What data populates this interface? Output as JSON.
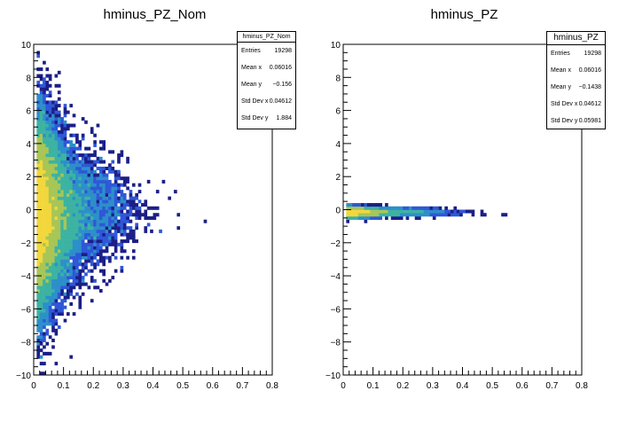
{
  "canvas": {
    "background": "#ffffff"
  },
  "pads": [
    {
      "id": "left",
      "title": "hminus_PZ_Nom",
      "stats": {
        "name": "hminus_PZ_Nom",
        "rows": [
          {
            "label": "Entries",
            "value": "19298"
          },
          {
            "label": "Mean x",
            "value": "0.06016"
          },
          {
            "label": "Mean y",
            "value": "−0.156"
          },
          {
            "label": "Std Dev x",
            "value": "0.04612"
          },
          {
            "label": "Std Dev y",
            "value": "1.884"
          }
        ]
      }
    },
    {
      "id": "right",
      "title": "hminus_PZ",
      "stats": {
        "name": "hminus_PZ",
        "rows": [
          {
            "label": "Entries",
            "value": "19298"
          },
          {
            "label": "Mean x",
            "value": "0.06016"
          },
          {
            "label": "Mean y",
            "value": "−0.1438"
          },
          {
            "label": "Std Dev x",
            "value": "0.04612"
          },
          {
            "label": "Std Dev y",
            "value": "0.05981"
          }
        ]
      }
    }
  ],
  "chart_data": [
    {
      "type": "heatmap",
      "title": "hminus_PZ_Nom",
      "xlabel": "",
      "ylabel": "",
      "xlim": [
        0,
        0.8
      ],
      "ylim": [
        -10,
        10
      ],
      "x_ticks": [
        "0",
        "0.1",
        "0.2",
        "0.3",
        "0.4",
        "0.5",
        "0.6",
        "0.7",
        "0.8"
      ],
      "y_ticks": [
        "−10",
        "−8",
        "−6",
        "−4",
        "−2",
        "0",
        "2",
        "4",
        "6",
        "8",
        "10"
      ],
      "colormap": [
        "#1b1f86",
        "#2f57d8",
        "#2c8fc9",
        "#3cb3a2",
        "#a7c656",
        "#f2d73c"
      ],
      "stats": {
        "Entries": 19298,
        "Mean x": 0.06016,
        "Mean y": -0.156,
        "Std Dev x": 0.04612,
        "Std Dev y": 1.884
      },
      "grid": false,
      "legend": "top-right"
    },
    {
      "type": "heatmap",
      "title": "hminus_PZ",
      "xlabel": "",
      "ylabel": "",
      "xlim": [
        0,
        0.8
      ],
      "ylim": [
        -10,
        10
      ],
      "x_ticks": [
        "0",
        "0.1",
        "0.2",
        "0.3",
        "0.4",
        "0.5",
        "0.6",
        "0.7",
        "0.8"
      ],
      "y_ticks": [
        "−10",
        "−8",
        "−6",
        "−4",
        "−2",
        "0",
        "2",
        "4",
        "6",
        "8",
        "10"
      ],
      "colormap": [
        "#1b1f86",
        "#2f57d8",
        "#2c8fc9",
        "#3cb3a2",
        "#a7c656",
        "#f2d73c"
      ],
      "stats": {
        "Entries": 19298,
        "Mean x": 0.06016,
        "Mean y": -0.1438,
        "Std Dev x": 0.04612,
        "Std Dev y": 0.05981
      },
      "grid": false,
      "legend": "top-right"
    }
  ]
}
